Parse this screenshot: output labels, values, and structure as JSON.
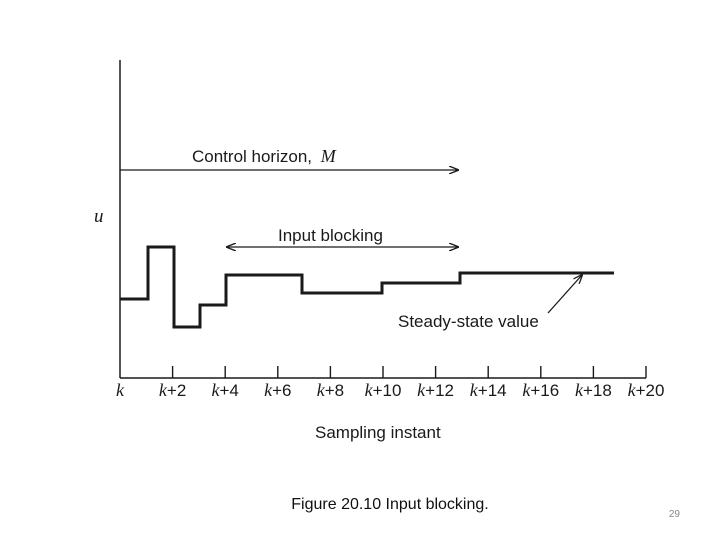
{
  "diagram": {
    "y_axis_label": "u",
    "x_axis_title": "Sampling instant",
    "control_horizon_label": "Control horizon,",
    "control_horizon_symbol": "M",
    "input_blocking_label": "Input blocking",
    "steady_state_label": "Steady-state value",
    "x_ticks": [
      {
        "base": "k",
        "suffix": ""
      },
      {
        "base": "k",
        "suffix": "+2"
      },
      {
        "base": "k",
        "suffix": "+4"
      },
      {
        "base": "k",
        "suffix": "+6"
      },
      {
        "base": "k",
        "suffix": "+8"
      },
      {
        "base": "k",
        "suffix": "+10"
      },
      {
        "base": "k",
        "suffix": "+12"
      },
      {
        "base": "k",
        "suffix": "+14"
      },
      {
        "base": "k",
        "suffix": "+16"
      },
      {
        "base": "k",
        "suffix": "+18"
      },
      {
        "base": "k",
        "suffix": "+20"
      }
    ]
  },
  "caption": "Figure 20.10 Input blocking.",
  "page_number": "29"
}
